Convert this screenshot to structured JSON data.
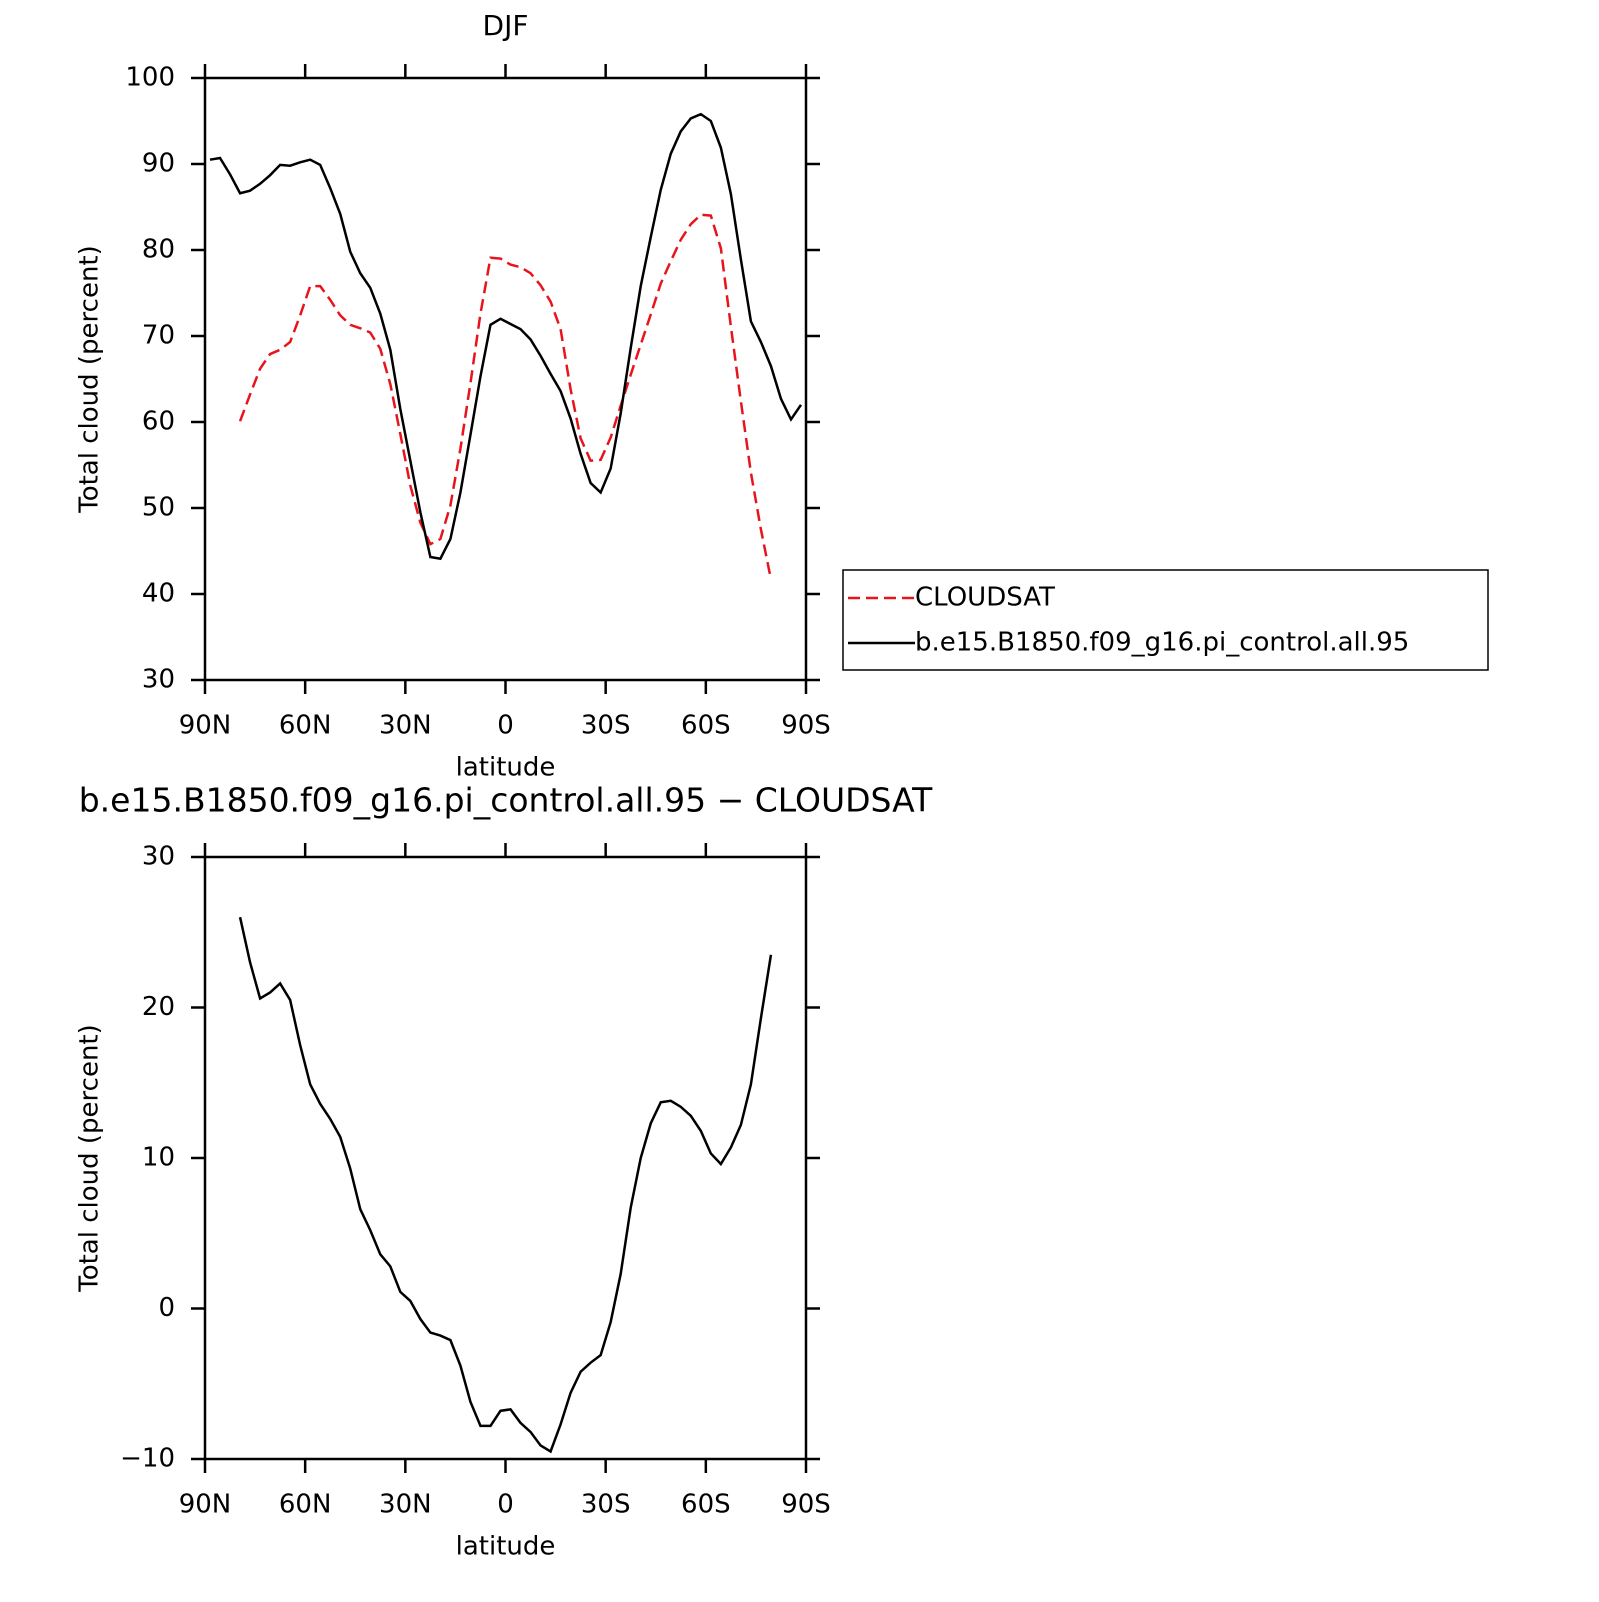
{
  "chart_data": [
    {
      "type": "line",
      "title": "DJF",
      "x_label": "latitude",
      "y_label": "Total cloud (percent)",
      "xlim": [
        90,
        -90
      ],
      "xticks": [
        {
          "value": 90,
          "label": "90N"
        },
        {
          "value": 60,
          "label": "60N"
        },
        {
          "value": 30,
          "label": "30N"
        },
        0,
        {
          "value": -30,
          "label": "30S"
        },
        {
          "value": -60,
          "label": "60S"
        },
        {
          "value": -90,
          "label": "90S"
        }
      ],
      "ylim": [
        30,
        100
      ],
      "yticks": [
        30,
        40,
        50,
        60,
        70,
        80,
        90,
        100
      ],
      "legend": "right",
      "x": [
        88.5,
        85.5,
        82.5,
        79.5,
        76.5,
        73.5,
        70.5,
        67.5,
        64.5,
        61.5,
        58.5,
        55.5,
        52.5,
        49.5,
        46.5,
        43.5,
        40.5,
        37.5,
        34.5,
        31.5,
        28.5,
        25.5,
        22.5,
        19.5,
        16.5,
        13.5,
        10.5,
        7.5,
        4.5,
        1.5,
        -1.5,
        -4.5,
        -7.5,
        -10.5,
        -13.5,
        -16.5,
        -19.5,
        -22.5,
        -25.5,
        -28.5,
        -31.5,
        -34.5,
        -37.5,
        -40.5,
        -43.5,
        -46.5,
        -49.5,
        -52.5,
        -55.5,
        -58.5,
        -61.5,
        -64.5,
        -67.5,
        -70.5,
        -73.5,
        -76.5,
        -79.5,
        -82.5,
        -85.5,
        -88.5
      ],
      "series": [
        {
          "name": "CLOUDSAT",
          "color": "#e8141c",
          "dashed": true,
          "values": [
            null,
            null,
            null,
            60.1,
            63.2,
            66.2,
            67.9,
            68.4,
            69.3,
            72.4,
            75.8,
            75.8,
            74.2,
            72.4,
            71.3,
            70.9,
            70.4,
            68.5,
            64.4,
            58.6,
            52.6,
            48.3,
            45.8,
            46.4,
            50.3,
            56.9,
            64.5,
            72.6,
            79.1,
            79.0,
            78.3,
            78.0,
            77.3,
            75.9,
            74.0,
            70.8,
            63.8,
            58.1,
            55.5,
            55.6,
            58.2,
            61.9,
            65.5,
            69.0,
            72.5,
            76.1,
            78.7,
            81.2,
            83.0,
            84.1,
            84.0,
            80.2,
            71.1,
            62.4,
            54.1,
            47.5,
            41.7,
            null,
            null,
            null
          ]
        },
        {
          "name": "b.e15.B1850.f09_g16.pi_control.all.95",
          "color": "#000000",
          "dashed": false,
          "values": [
            90.5,
            90.7,
            88.8,
            86.6,
            86.9,
            87.7,
            88.7,
            89.9,
            89.8,
            90.2,
            90.5,
            89.9,
            87.2,
            84.2,
            79.8,
            77.3,
            75.6,
            72.6,
            68.4,
            61.5,
            55.5,
            49.5,
            44.3,
            44.1,
            46.4,
            51.8,
            58.5,
            65.3,
            71.3,
            72.0,
            71.4,
            70.8,
            69.6,
            67.7,
            65.6,
            63.6,
            60.4,
            56.3,
            52.9,
            51.8,
            54.6,
            61.0,
            68.6,
            75.8,
            81.5,
            87.0,
            91.2,
            93.8,
            95.3,
            95.8,
            95.0,
            91.9,
            86.5,
            78.9,
            71.7,
            69.3,
            66.5,
            62.7,
            60.3,
            62.0
          ]
        }
      ]
    },
    {
      "type": "line",
      "title": "b.e15.B1850.f09_g16.pi_control.all.95 − CLOUDSAT",
      "x_label": "latitude",
      "y_label": "Total cloud (percent)",
      "xlim": [
        90,
        -90
      ],
      "xticks": [
        {
          "value": 90,
          "label": "90N"
        },
        {
          "value": 60,
          "label": "60N"
        },
        {
          "value": 30,
          "label": "30N"
        },
        0,
        {
          "value": -30,
          "label": "30S"
        },
        {
          "value": -60,
          "label": "60S"
        },
        {
          "value": -90,
          "label": "90S"
        }
      ],
      "ylim": [
        -10,
        30
      ],
      "yticks": [
        {
          "value": -10,
          "label": "−10"
        },
        0,
        10,
        20,
        30
      ],
      "x": [
        88.5,
        85.5,
        82.5,
        79.5,
        76.5,
        73.5,
        70.5,
        67.5,
        64.5,
        61.5,
        58.5,
        55.5,
        52.5,
        49.5,
        46.5,
        43.5,
        40.5,
        37.5,
        34.5,
        31.5,
        28.5,
        25.5,
        22.5,
        19.5,
        16.5,
        13.5,
        10.5,
        7.5,
        4.5,
        1.5,
        -1.5,
        -4.5,
        -7.5,
        -10.5,
        -13.5,
        -16.5,
        -19.5,
        -22.5,
        -25.5,
        -28.5,
        -31.5,
        -34.5,
        -37.5,
        -40.5,
        -43.5,
        -46.5,
        -49.5,
        -52.5,
        -55.5,
        -58.5,
        -61.5,
        -64.5,
        -67.5,
        -70.5,
        -73.5,
        -76.5,
        -79.5,
        -82.5,
        -85.5,
        -88.5
      ],
      "series": [
        {
          "color": "#000000",
          "dashed": false,
          "values": [
            null,
            null,
            null,
            26.0,
            23.0,
            20.6,
            21.0,
            21.6,
            20.5,
            17.5,
            14.9,
            13.6,
            12.6,
            11.4,
            9.3,
            6.6,
            5.2,
            3.6,
            2.8,
            1.1,
            0.5,
            -0.7,
            -1.6,
            -1.8,
            -2.1,
            -3.8,
            -6.2,
            -7.8,
            -7.8,
            -6.8,
            -6.7,
            -7.6,
            -8.2,
            -9.1,
            -9.5,
            -7.7,
            -5.6,
            -4.2,
            -3.6,
            -3.1,
            -0.9,
            2.3,
            6.7,
            10.0,
            12.3,
            13.7,
            13.8,
            13.4,
            12.8,
            11.8,
            10.3,
            9.6,
            10.7,
            12.2,
            14.9,
            19.3,
            23.5,
            null,
            null,
            null
          ]
        }
      ]
    }
  ]
}
